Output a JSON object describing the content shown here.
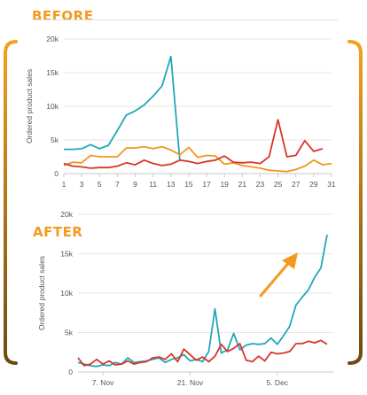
{
  "labels": {
    "before": "BEFORE",
    "after": "AFTER"
  },
  "colors": {
    "accent": "#f39a1e",
    "frame_top": "#f3a21f",
    "frame_bottom": "#6e4a12",
    "teal": "#23a7b8",
    "red": "#d8362a",
    "orange": "#f1961e"
  },
  "chart_data": [
    {
      "type": "line",
      "name": "before",
      "ylabel": "Ordered product sales",
      "xlabel": "",
      "x": [
        1,
        2,
        3,
        4,
        5,
        6,
        7,
        8,
        9,
        10,
        11,
        12,
        13,
        14,
        15,
        16,
        17,
        18,
        19,
        20,
        21,
        22,
        23,
        24,
        25,
        26,
        27,
        28,
        29,
        30,
        31
      ],
      "xticks": [
        1,
        3,
        5,
        7,
        9,
        11,
        13,
        15,
        17,
        19,
        21,
        23,
        25,
        27,
        29,
        31
      ],
      "xlim": [
        1,
        31
      ],
      "ylim": [
        0,
        20000
      ],
      "yticks": [
        0,
        5000,
        10000,
        15000,
        20000
      ],
      "ytick_labels": [
        "0",
        "5k",
        "10k",
        "15k",
        "20k"
      ],
      "series": [
        {
          "color": "#23a7b8",
          "values": [
            3600,
            3600,
            3700,
            4300,
            3700,
            4200,
            6400,
            8700,
            9300,
            10200,
            11500,
            13000,
            17400,
            1900,
            null,
            null,
            null,
            null,
            null,
            null,
            null,
            null,
            null,
            null,
            null,
            null,
            null,
            null,
            null,
            null,
            null
          ]
        },
        {
          "color": "#f1961e",
          "values": [
            1200,
            1700,
            1600,
            2700,
            2500,
            2500,
            2500,
            3800,
            3800,
            4000,
            3700,
            4000,
            3500,
            2800,
            3900,
            2400,
            2700,
            2600,
            1400,
            1600,
            1200,
            1000,
            800,
            500,
            400,
            300,
            600,
            1100,
            2000,
            1300,
            1500
          ]
        },
        {
          "color": "#d8362a",
          "values": [
            1500,
            1100,
            1000,
            800,
            900,
            900,
            1100,
            1600,
            1300,
            2000,
            1500,
            1200,
            1400,
            2000,
            1800,
            1500,
            1800,
            2000,
            2600,
            1700,
            1600,
            1700,
            1500,
            2500,
            8000,
            2500,
            2700,
            4900,
            3300,
            3700,
            null
          ]
        }
      ]
    },
    {
      "type": "line",
      "name": "after",
      "ylabel": "Ordered product sales",
      "xlabel": "",
      "xlim": [
        0,
        41
      ],
      "ylim": [
        0,
        20000
      ],
      "yticks": [
        0,
        5000,
        10000,
        15000,
        20000
      ],
      "ytick_labels": [
        "0",
        "5k",
        "10k",
        "15k",
        "20k"
      ],
      "xticks": [
        {
          "at": 4,
          "label": "7. Nov"
        },
        {
          "at": 18,
          "label": "21. Nov"
        },
        {
          "at": 32,
          "label": "5. Dec"
        }
      ],
      "series": [
        {
          "color": "#23a7b8",
          "values": [
            1200,
            1000,
            800,
            700,
            900,
            800,
            1200,
            1000,
            1800,
            1200,
            1300,
            1400,
            1600,
            1800,
            1200,
            1600,
            1800,
            2200,
            1400,
            1600,
            1300,
            2600,
            8000,
            2400,
            2800,
            4900,
            2800,
            3400,
            3600,
            3500,
            3600,
            4300,
            3500,
            4600,
            5800,
            8500,
            9500,
            10400,
            12000,
            13200,
            17400
          ]
        },
        {
          "color": "#d8362a",
          "values": [
            1800,
            800,
            1000,
            1600,
            1000,
            1400,
            900,
            1000,
            1400,
            1000,
            1200,
            1300,
            1800,
            1900,
            1600,
            2300,
            1300,
            2900,
            2200,
            1500,
            1900,
            1300,
            2000,
            3500,
            2600,
            3000,
            3600,
            1500,
            1300,
            2000,
            1400,
            2500,
            2300,
            2400,
            2600,
            3600,
            3600,
            3900,
            3700,
            4000,
            3500
          ]
        }
      ]
    }
  ]
}
